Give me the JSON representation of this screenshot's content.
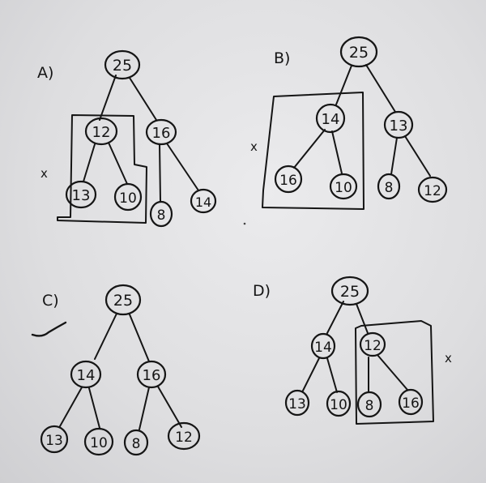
{
  "panels": [
    {
      "id": "a",
      "label": "A)",
      "nodes": [
        "25",
        "12",
        "16",
        "13",
        "10",
        "8",
        "14"
      ],
      "mark": "x"
    },
    {
      "id": "b",
      "label": "B)",
      "nodes": [
        "25",
        "14",
        "13",
        "16",
        "10",
        "8",
        "12"
      ],
      "mark": "x"
    },
    {
      "id": "c",
      "label": "C)",
      "nodes": [
        "25",
        "14",
        "16",
        "13",
        "10",
        "8",
        "12"
      ],
      "mark": "check"
    },
    {
      "id": "d",
      "label": "D)",
      "nodes": [
        "25",
        "14",
        "12",
        "13",
        "10",
        "8",
        "16"
      ],
      "mark": "x"
    }
  ],
  "x_mark_text": "x"
}
